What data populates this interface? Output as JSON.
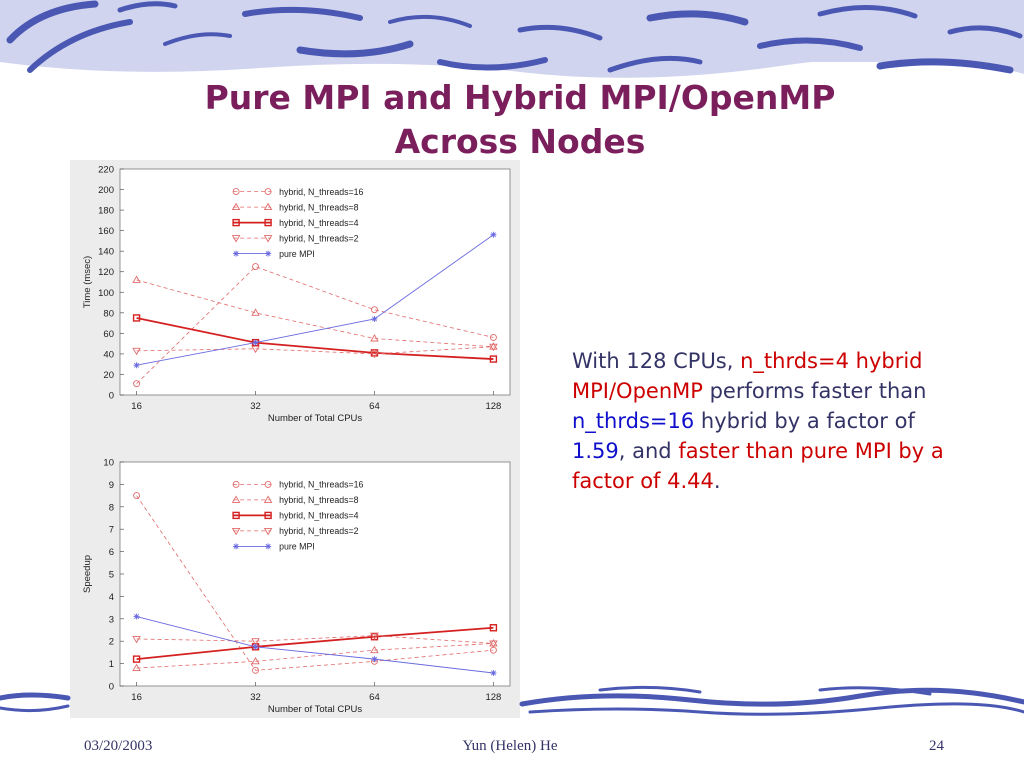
{
  "slide": {
    "title_line1": "Pure MPI and Hybrid MPI/OpenMP",
    "title_line2": "Across Nodes",
    "footer_date": "03/20/2003",
    "footer_author": "Yun (Helen) He",
    "footer_page": "24"
  },
  "summary": {
    "t1": "With 128 CPUs, ",
    "t2": "n_thrds=4 hybrid MPI/OpenMP",
    "t3": " performs faster than ",
    "t4": "n_thrds=16",
    "t5": " hybrid by a factor of ",
    "t6": "1.59",
    "t7": ", and ",
    "t8": "faster than pure MPI by a factor of 4.44",
    "t9": "."
  },
  "colors": {
    "title": "#7a1f5c",
    "text": "#333366",
    "highlight_red": "#cc0000",
    "highlight_blue": "#1010cc",
    "hybrid": "#e06a6a",
    "hybrid_bold": "#d42020",
    "pure_mpi": "#6a6ae0",
    "wave": "#4a58b4",
    "wave_bg": "#d0d4ee"
  },
  "chart_data": [
    {
      "type": "line",
      "x": [
        16,
        32,
        64,
        128
      ],
      "x_ticks": [
        "16",
        "32",
        "64",
        "128"
      ],
      "xlabel": "Number of Total CPUs",
      "ylabel": "Time (msec)",
      "ylim": [
        0,
        220
      ],
      "y_ticks": [
        "0",
        "20",
        "40",
        "60",
        "80",
        "100",
        "120",
        "140",
        "160",
        "180",
        "200",
        "220"
      ],
      "grid": false,
      "legend_position": "top-center",
      "series": [
        {
          "name": "hybrid, N_threads=16",
          "marker": "circle",
          "style": "dashed",
          "values": [
            11,
            125,
            83,
            56
          ]
        },
        {
          "name": "hybrid, N_threads=8",
          "marker": "triangle-up",
          "style": "dashed",
          "values": [
            112,
            80,
            55,
            47
          ]
        },
        {
          "name": "hybrid, N_threads=4",
          "marker": "square",
          "style": "solid-bold",
          "values": [
            75,
            51,
            41,
            35
          ]
        },
        {
          "name": "hybrid, N_threads=2",
          "marker": "triangle-down",
          "style": "dashed",
          "values": [
            43,
            45,
            40,
            47
          ]
        },
        {
          "name": "pure MPI",
          "marker": "star",
          "style": "solid-thin",
          "values": [
            29,
            51,
            74,
            156
          ]
        }
      ]
    },
    {
      "type": "line",
      "x": [
        16,
        32,
        64,
        128
      ],
      "x_ticks": [
        "16",
        "32",
        "64",
        "128"
      ],
      "xlabel": "Number of Total CPUs",
      "ylabel": "Speedup",
      "ylim": [
        0,
        10
      ],
      "y_ticks": [
        "0",
        "1",
        "2",
        "3",
        "4",
        "5",
        "6",
        "7",
        "8",
        "9",
        "10"
      ],
      "grid": false,
      "legend_position": "top-center",
      "series": [
        {
          "name": "hybrid, N_threads=16",
          "marker": "circle",
          "style": "dashed",
          "values": [
            8.5,
            0.7,
            1.1,
            1.6
          ]
        },
        {
          "name": "hybrid, N_threads=8",
          "marker": "triangle-up",
          "style": "dashed",
          "values": [
            0.8,
            1.1,
            1.6,
            1.9
          ]
        },
        {
          "name": "hybrid, N_threads=4",
          "marker": "square",
          "style": "solid-bold",
          "values": [
            1.2,
            1.75,
            2.2,
            2.6
          ]
        },
        {
          "name": "hybrid, N_threads=2",
          "marker": "triangle-down",
          "style": "dashed",
          "values": [
            2.1,
            2.0,
            2.25,
            1.9
          ]
        },
        {
          "name": "pure MPI",
          "marker": "star",
          "style": "solid-thin",
          "values": [
            3.1,
            1.75,
            1.2,
            0.58
          ]
        }
      ]
    }
  ]
}
